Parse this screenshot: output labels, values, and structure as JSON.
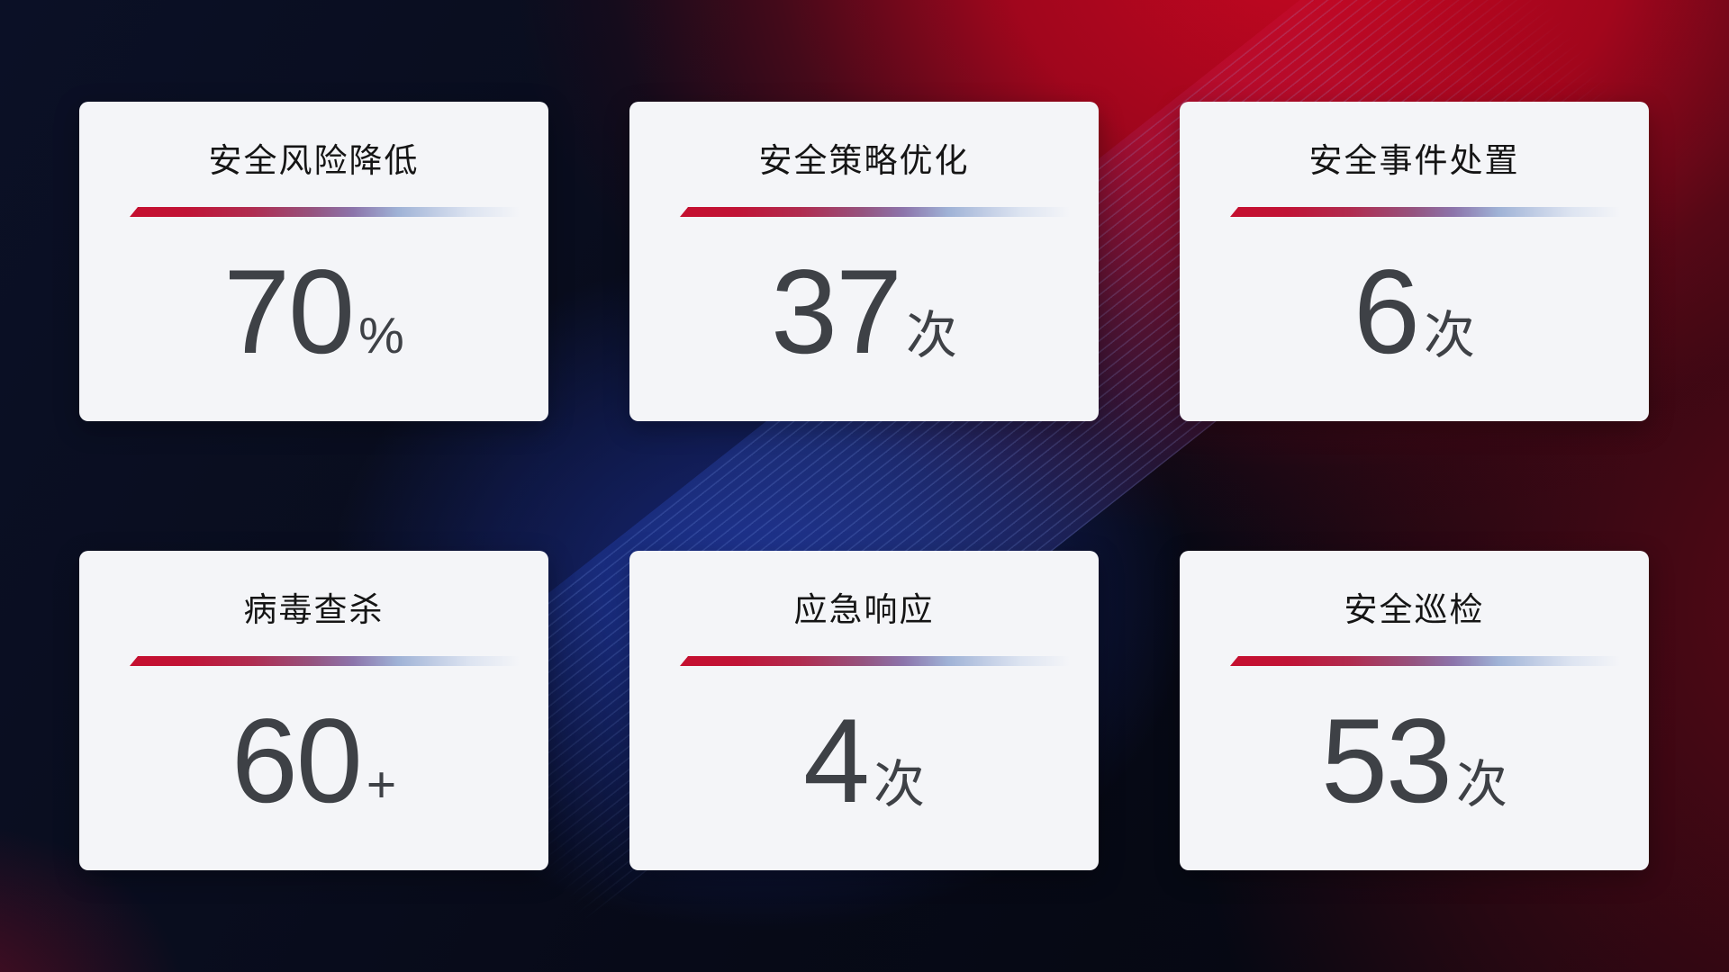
{
  "theme": {
    "card_bg": "#f4f5f8",
    "title_color": "#151515",
    "value_color": "#3e4146",
    "divider_red": "#c50f2f",
    "divider_blue": "#9fb2d6",
    "bg_navy": "#0b1026",
    "bg_red_glow": "#c40720",
    "bg_maroon": "#5c0816",
    "bg_blue_glow": "#1c3096"
  },
  "cards": [
    {
      "title": "安全风险降低",
      "value": "70",
      "unit": "%"
    },
    {
      "title": "安全策略优化",
      "value": "37",
      "unit": "次"
    },
    {
      "title": "安全事件处置",
      "value": "6",
      "unit": "次"
    },
    {
      "title": "病毒查杀",
      "value": "60",
      "unit": "+"
    },
    {
      "title": "应急响应",
      "value": "4",
      "unit": "次"
    },
    {
      "title": "安全巡检",
      "value": "53",
      "unit": "次"
    }
  ]
}
